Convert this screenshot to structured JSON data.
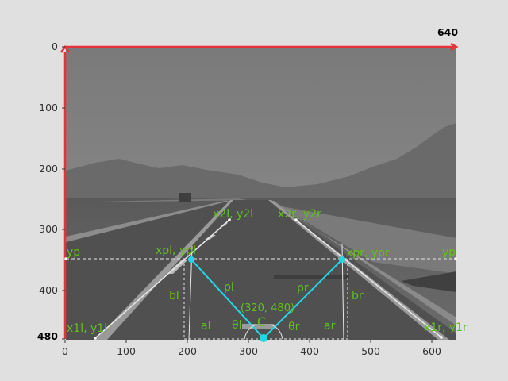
{
  "axes": {
    "x_max_label": "640",
    "y_max_label": "480",
    "x_ticks": [
      "0",
      "100",
      "200",
      "300",
      "400",
      "500",
      "600"
    ],
    "y_ticks": [
      "0",
      "100",
      "200",
      "300",
      "400"
    ]
  },
  "labels": {
    "p1_left": "x1l, y1l",
    "p2_left": "x2l, y2l",
    "pp_left": "xpl, ypl",
    "p1_right": "x1r, y1r",
    "p2_right": "x2r, y2r",
    "pp_right": "xpr, ypr",
    "yp_left": "yp",
    "yp_right": "yp",
    "rho_left": "ρl",
    "rho_right": "ρr",
    "a_left": "al",
    "a_right": "ar",
    "b_left": "bl",
    "b_right": "br",
    "theta_left": "θl",
    "theta_right": "θr",
    "center_coord": "(320, 480)",
    "center_label": "C"
  },
  "colors": {
    "axis_arrow": "#e8323a",
    "connector": "#22d8e6",
    "label": "#5fc21a",
    "guide": "#e8e8e8"
  }
}
